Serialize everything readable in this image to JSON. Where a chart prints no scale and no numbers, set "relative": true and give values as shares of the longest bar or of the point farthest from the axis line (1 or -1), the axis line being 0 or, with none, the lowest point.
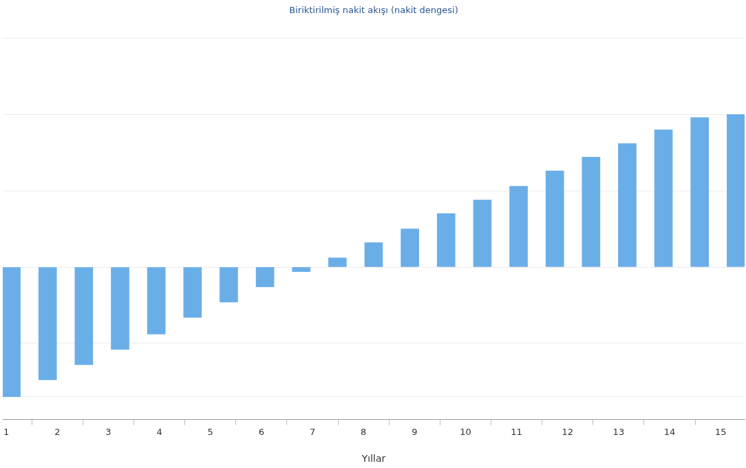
{
  "chart_data": {
    "type": "bar",
    "title": "Biriktirilmiş nakit akışı (nakit dengesi)",
    "xlabel": "Yıllar",
    "relative": true,
    "x": [
      1.1,
      1.81,
      2.52,
      3.23,
      3.94,
      4.65,
      5.36,
      6.07,
      6.78,
      7.49,
      8.2,
      8.91,
      9.62,
      10.33,
      11.04,
      11.75,
      12.46,
      13.17,
      13.88,
      14.59,
      15.3
    ],
    "values": [
      -0.85,
      -0.74,
      -0.64,
      -0.54,
      -0.44,
      -0.33,
      -0.23,
      -0.13,
      -0.03,
      0.06,
      0.16,
      0.25,
      0.35,
      0.44,
      0.53,
      0.63,
      0.72,
      0.81,
      0.9,
      0.98,
      1
    ],
    "color": "#6aaee8",
    "xlim": [
      0.93,
      15.47
    ],
    "xticks": [
      1,
      2,
      3,
      4,
      5,
      6,
      7,
      8,
      9,
      10,
      11,
      12,
      13,
      14,
      15
    ],
    "grid": "y",
    "legend": false
  }
}
